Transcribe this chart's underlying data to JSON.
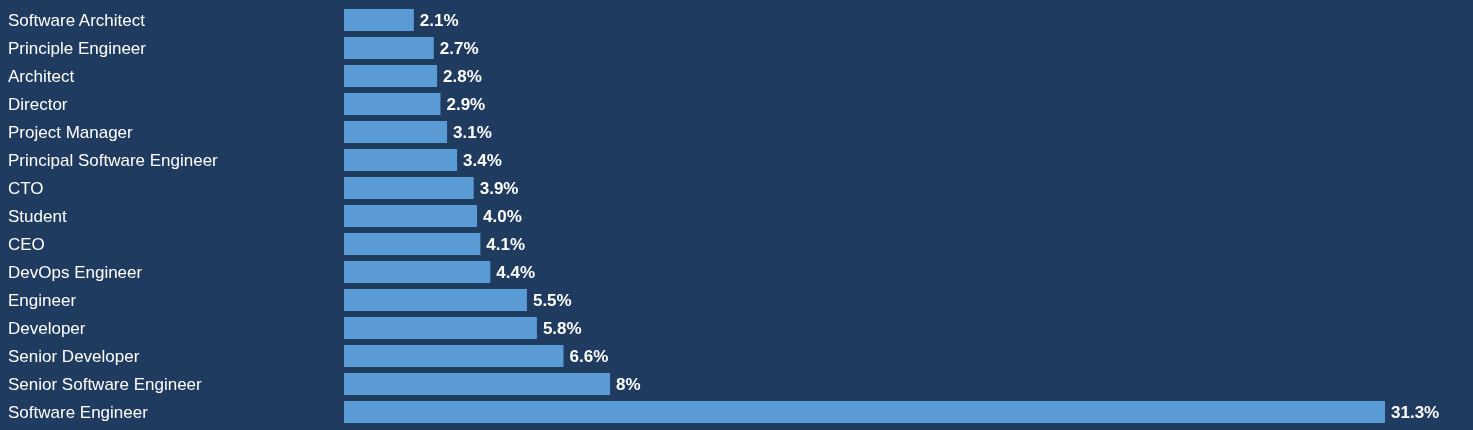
{
  "chart_data": {
    "type": "bar",
    "orientation": "horizontal",
    "categories": [
      "Software Architect",
      "Principle Engineer",
      "Architect",
      "Director",
      "Project Manager",
      "Principal Software Engineer",
      "CTO",
      "Student",
      "CEO",
      "DevOps Engineer",
      "Engineer",
      "Developer",
      "Senior Developer",
      "Senior Software Engineer",
      "Software Engineer"
    ],
    "values": [
      2.1,
      2.7,
      2.8,
      2.9,
      3.1,
      3.4,
      3.9,
      4.0,
      4.1,
      4.4,
      5.5,
      5.8,
      6.6,
      8,
      31.3
    ],
    "value_labels": [
      "2.1%",
      "2.7%",
      "2.8%",
      "2.9%",
      "3.1%",
      "3.4%",
      "3.9%",
      "4.0%",
      "4.1%",
      "4.4%",
      "5.5%",
      "5.8%",
      "6.6%",
      "8%",
      "31.3%"
    ],
    "color": "#5b9bd5"
  }
}
